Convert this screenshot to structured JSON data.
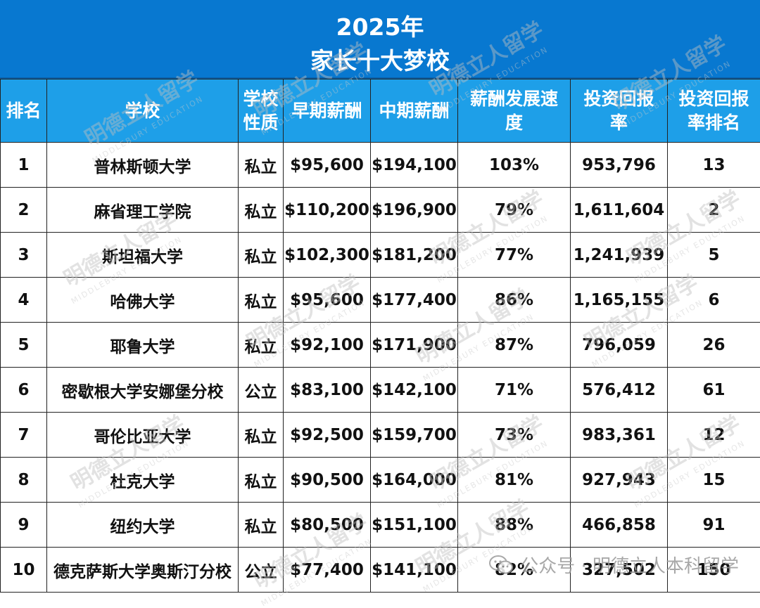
{
  "title": {
    "line1": "2025年",
    "line2": "家长十大梦校"
  },
  "columns": [
    "排名",
    "学校",
    "学校\n性质",
    "早期薪酬",
    "中期薪酬",
    "薪酬发展速\n度",
    "投资回报\n率",
    "投资回报\n率排名"
  ],
  "rows": [
    {
      "rank": "1",
      "school": "普林斯顿大学",
      "type": "私立",
      "early": "$95,600",
      "mid": "$194,100",
      "growth": "103%",
      "roi": "953,796",
      "roi_rank": "13"
    },
    {
      "rank": "2",
      "school": "麻省理工学院",
      "type": "私立",
      "early": "$110,200",
      "mid": "$196,900",
      "growth": "79%",
      "roi": "1,611,604",
      "roi_rank": "2"
    },
    {
      "rank": "3",
      "school": "斯坦福大学",
      "type": "私立",
      "early": "$102,300",
      "mid": "$181,200",
      "growth": "77%",
      "roi": "1,241,939",
      "roi_rank": "5"
    },
    {
      "rank": "4",
      "school": "哈佛大学",
      "type": "私立",
      "early": "$95,600",
      "mid": "$177,400",
      "growth": "86%",
      "roi": "1,165,155",
      "roi_rank": "6"
    },
    {
      "rank": "5",
      "school": "耶鲁大学",
      "type": "私立",
      "early": "$92,100",
      "mid": "$171,900",
      "growth": "87%",
      "roi": "796,059",
      "roi_rank": "26"
    },
    {
      "rank": "6",
      "school": "密歇根大学安娜堡分校",
      "type": "公立",
      "early": "$83,100",
      "mid": "$142,100",
      "growth": "71%",
      "roi": "576,412",
      "roi_rank": "61"
    },
    {
      "rank": "7",
      "school": "哥伦比亚大学",
      "type": "私立",
      "early": "$92,500",
      "mid": "$159,700",
      "growth": "73%",
      "roi": "983,361",
      "roi_rank": "12"
    },
    {
      "rank": "8",
      "school": "杜克大学",
      "type": "私立",
      "early": "$90,500",
      "mid": "$164,000",
      "growth": "81%",
      "roi": "927,943",
      "roi_rank": "15"
    },
    {
      "rank": "9",
      "school": "纽约大学",
      "type": "私立",
      "early": "$80,500",
      "mid": "$151,100",
      "growth": "88%",
      "roi": "466,858",
      "roi_rank": "91"
    },
    {
      "rank": "10",
      "school": "德克萨斯大学奥斯汀分校",
      "type": "公立",
      "early": "$77,400",
      "mid": "$141,100",
      "growth": "82%",
      "roi": "327,502",
      "roi_rank": "150"
    }
  ],
  "watermark": {
    "text": "明德立人留学",
    "sub": "MIDDLEBURY EDUCATION"
  },
  "footer": {
    "icon": "wechat-icon",
    "text": "公众号 · 明德立人本科留学"
  },
  "colors": {
    "title_bg": "#0878d0",
    "header_bg": "#1e9fe8",
    "header_text": "#ffffff"
  }
}
